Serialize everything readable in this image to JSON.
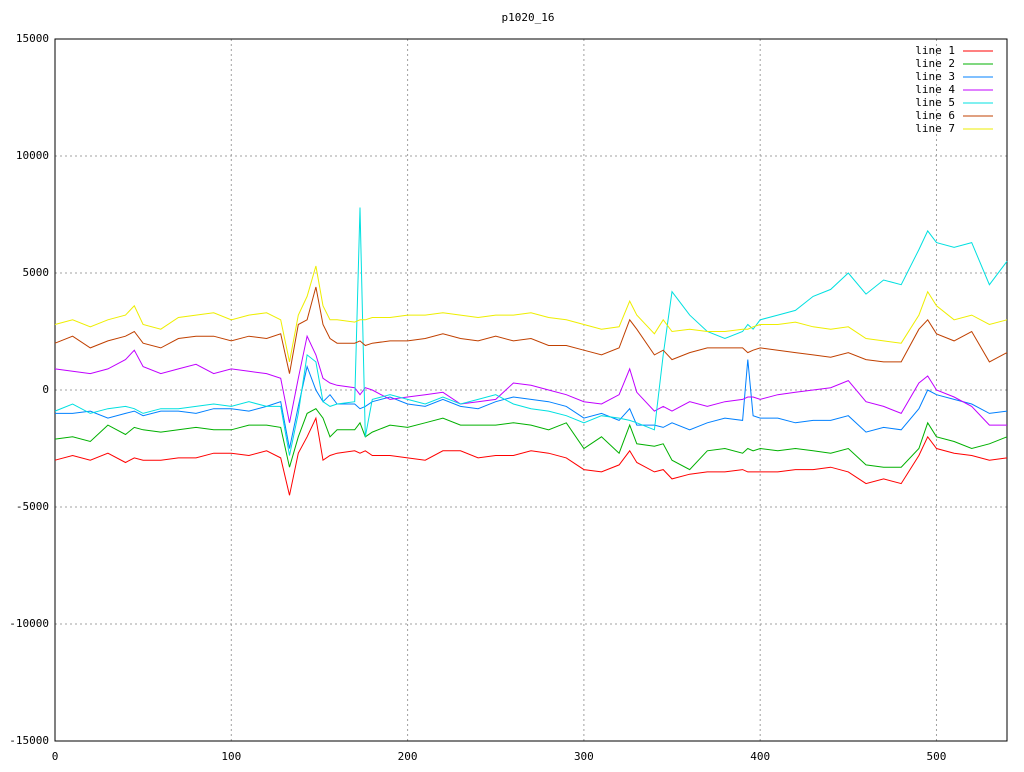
{
  "chart_data": {
    "type": "line",
    "title": "p1020_16",
    "x": [
      0,
      10,
      20,
      30,
      40,
      45,
      50,
      60,
      70,
      80,
      90,
      100,
      110,
      120,
      128,
      133,
      138,
      143,
      148,
      152,
      156,
      160,
      170,
      173,
      176,
      180,
      190,
      200,
      210,
      220,
      230,
      240,
      250,
      260,
      270,
      280,
      290,
      300,
      310,
      320,
      326,
      330,
      340,
      345,
      350,
      360,
      370,
      380,
      390,
      393,
      396,
      400,
      410,
      420,
      430,
      440,
      450,
      460,
      470,
      480,
      490,
      495,
      500,
      510,
      520,
      530,
      540
    ],
    "series": [
      {
        "name": "line 1",
        "color": "#ff0000",
        "values": [
          -3000,
          -2800,
          -3000,
          -2700,
          -3100,
          -2900,
          -3000,
          -3000,
          -2900,
          -2900,
          -2700,
          -2700,
          -2800,
          -2600,
          -2900,
          -4500,
          -2700,
          -2000,
          -1200,
          -3000,
          -2800,
          -2700,
          -2600,
          -2700,
          -2600,
          -2800,
          -2800,
          -2900,
          -3000,
          -2600,
          -2600,
          -2900,
          -2800,
          -2800,
          -2600,
          -2700,
          -2900,
          -3400,
          -3500,
          -3200,
          -2600,
          -3100,
          -3500,
          -3400,
          -3800,
          -3600,
          -3500,
          -3500,
          -3400,
          -3500,
          -3500,
          -3500,
          -3500,
          -3400,
          -3400,
          -3300,
          -3500,
          -4000,
          -3800,
          -4000,
          -2800,
          -2000,
          -2500,
          -2700,
          -2800,
          -3000,
          -2900
        ]
      },
      {
        "name": "line 2",
        "color": "#00b000",
        "values": [
          -2100,
          -2000,
          -2200,
          -1500,
          -1900,
          -1600,
          -1700,
          -1800,
          -1700,
          -1600,
          -1700,
          -1700,
          -1500,
          -1500,
          -1600,
          -3300,
          -2000,
          -1000,
          -800,
          -1200,
          -2000,
          -1700,
          -1700,
          -1400,
          -2000,
          -1800,
          -1500,
          -1600,
          -1400,
          -1200,
          -1500,
          -1500,
          -1500,
          -1400,
          -1500,
          -1700,
          -1400,
          -2500,
          -2000,
          -2700,
          -1500,
          -2300,
          -2400,
          -2300,
          -3000,
          -3400,
          -2600,
          -2500,
          -2700,
          -2500,
          -2600,
          -2500,
          -2600,
          -2500,
          -2600,
          -2700,
          -2500,
          -3200,
          -3300,
          -3300,
          -2500,
          -1400,
          -2000,
          -2200,
          -2500,
          -2300,
          -2000
        ]
      },
      {
        "name": "line 3",
        "color": "#0080ff",
        "values": [
          -1000,
          -1000,
          -900,
          -1200,
          -1000,
          -900,
          -1100,
          -900,
          -900,
          -1000,
          -800,
          -800,
          -900,
          -700,
          -500,
          -2500,
          -700,
          1000,
          0,
          -500,
          -200,
          -600,
          -600,
          -800,
          -700,
          -500,
          -300,
          -600,
          -700,
          -400,
          -700,
          -800,
          -500,
          -300,
          -400,
          -500,
          -700,
          -1200,
          -1000,
          -1300,
          -800,
          -1500,
          -1500,
          -1600,
          -1400,
          -1700,
          -1400,
          -1200,
          -1300,
          1300,
          -1100,
          -1200,
          -1200,
          -1400,
          -1300,
          -1300,
          -1100,
          -1800,
          -1600,
          -1700,
          -800,
          0,
          -200,
          -400,
          -600,
          -1000,
          -900
        ]
      },
      {
        "name": "line 4",
        "color": "#c000ff",
        "values": [
          900,
          800,
          700,
          900,
          1300,
          1700,
          1000,
          700,
          900,
          1100,
          700,
          900,
          800,
          700,
          500,
          -1400,
          500,
          2300,
          1500,
          500,
          300,
          200,
          100,
          -200,
          100,
          0,
          -400,
          -300,
          -200,
          -100,
          -600,
          -500,
          -400,
          300,
          200,
          0,
          -200,
          -500,
          -600,
          -200,
          900,
          -100,
          -900,
          -700,
          -900,
          -500,
          -700,
          -500,
          -400,
          -300,
          -300,
          -400,
          -200,
          -100,
          0,
          100,
          400,
          -500,
          -700,
          -1000,
          300,
          600,
          0,
          -300,
          -700,
          -1500,
          -1500
        ]
      },
      {
        "name": "line 5",
        "color": "#00e0e0",
        "values": [
          -900,
          -600,
          -1000,
          -800,
          -700,
          -800,
          -1000,
          -800,
          -800,
          -700,
          -600,
          -700,
          -500,
          -700,
          -700,
          -2800,
          -1000,
          1500,
          1200,
          -500,
          -700,
          -600,
          -500,
          7800,
          -2000,
          -400,
          -200,
          -400,
          -600,
          -300,
          -600,
          -400,
          -200,
          -600,
          -800,
          -900,
          -1100,
          -1400,
          -1100,
          -1200,
          -1300,
          -1400,
          -1700,
          1500,
          4200,
          3200,
          2500,
          2200,
          2500,
          2800,
          2600,
          3000,
          3200,
          3400,
          4000,
          4300,
          5000,
          4100,
          4700,
          4500,
          6000,
          6800,
          6300,
          6100,
          6300,
          4500,
          5500
        ]
      },
      {
        "name": "line 6",
        "color": "#c04000",
        "values": [
          2000,
          2300,
          1800,
          2100,
          2300,
          2500,
          2000,
          1800,
          2200,
          2300,
          2300,
          2100,
          2300,
          2200,
          2400,
          700,
          2800,
          3000,
          4400,
          2800,
          2200,
          2000,
          2000,
          2100,
          1900,
          2000,
          2100,
          2100,
          2200,
          2400,
          2200,
          2100,
          2300,
          2100,
          2200,
          1900,
          1900,
          1700,
          1500,
          1800,
          3000,
          2600,
          1500,
          1700,
          1300,
          1600,
          1800,
          1800,
          1800,
          1600,
          1700,
          1800,
          1700,
          1600,
          1500,
          1400,
          1600,
          1300,
          1200,
          1200,
          2600,
          3000,
          2400,
          2100,
          2500,
          1200,
          1600
        ]
      },
      {
        "name": "line 7",
        "color": "#eeee00",
        "values": [
          2800,
          3000,
          2700,
          3000,
          3200,
          3600,
          2800,
          2600,
          3100,
          3200,
          3300,
          3000,
          3200,
          3300,
          3000,
          1200,
          3200,
          4000,
          5300,
          3600,
          3000,
          3000,
          2900,
          3000,
          3000,
          3100,
          3100,
          3200,
          3200,
          3300,
          3200,
          3100,
          3200,
          3200,
          3300,
          3100,
          3000,
          2800,
          2600,
          2700,
          3800,
          3200,
          2400,
          3000,
          2500,
          2600,
          2500,
          2500,
          2600,
          2600,
          2700,
          2800,
          2800,
          2900,
          2700,
          2600,
          2700,
          2200,
          2100,
          2000,
          3200,
          4200,
          3600,
          3000,
          3200,
          2800,
          3000
        ]
      }
    ],
    "xlim": [
      0,
      540
    ],
    "ylim": [
      -15000,
      15000
    ],
    "xticks": [
      0,
      100,
      200,
      300,
      400,
      500
    ],
    "yticks": [
      -15000,
      -10000,
      -5000,
      0,
      5000,
      10000,
      15000
    ],
    "grid": true,
    "legend": "top-right"
  }
}
